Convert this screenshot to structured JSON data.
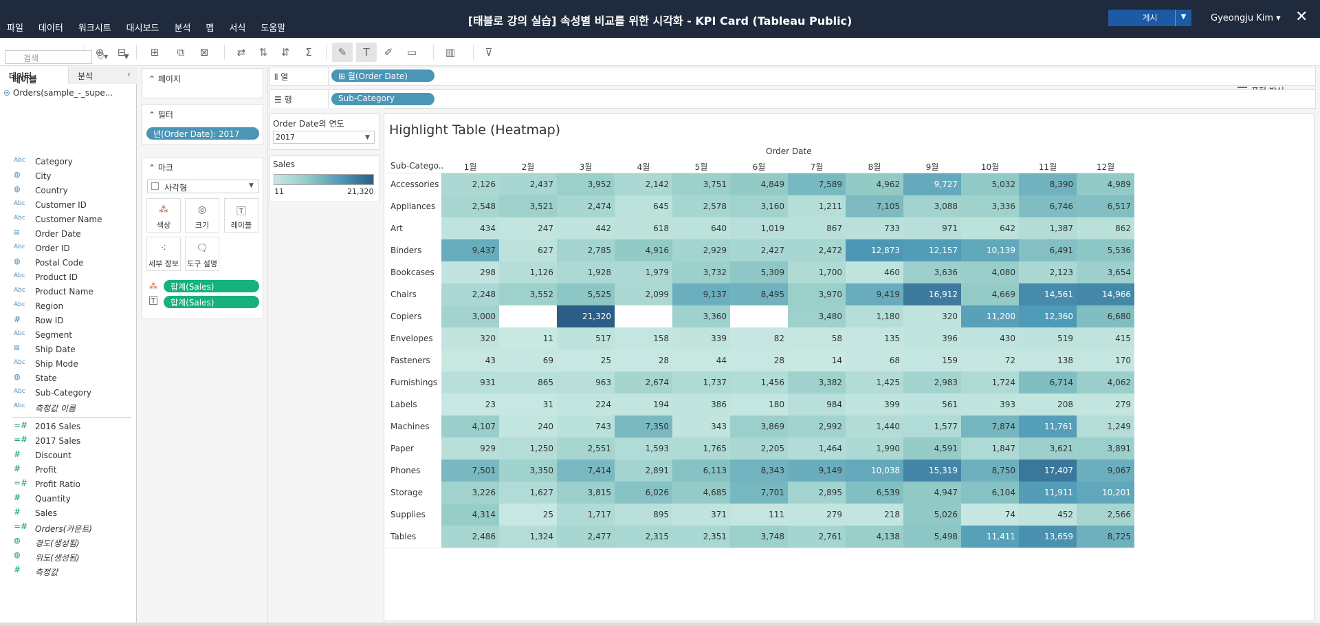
{
  "menu": [
    "파일",
    "데이터",
    "워크시트",
    "대시보드",
    "분석",
    "맵",
    "서식",
    "도움말"
  ],
  "title": "[태블로 강의 실습] 속성별 비교를 위한 시각화 - KPI Card (Tableau Public)",
  "publish_label": "게시",
  "user": "Gyeongju Kim ▾",
  "present_label": "표현 방식",
  "datapane": {
    "tab_data": "데이터",
    "tab_analysis": "분석",
    "datasource": "Orders(sample_-_supe...",
    "search_placeholder": "검색",
    "fields_heading": "테이블",
    "dimensions": [
      {
        "type": "Abc",
        "name": "Category"
      },
      {
        "type": "geo",
        "name": "City"
      },
      {
        "type": "geo",
        "name": "Country"
      },
      {
        "type": "Abc",
        "name": "Customer ID"
      },
      {
        "type": "Abc",
        "name": "Customer Name"
      },
      {
        "type": "date",
        "name": "Order Date"
      },
      {
        "type": "Abc",
        "name": "Order ID"
      },
      {
        "type": "geo",
        "name": "Postal Code"
      },
      {
        "type": "Abc",
        "name": "Product ID"
      },
      {
        "type": "Abc",
        "name": "Product Name"
      },
      {
        "type": "Abc",
        "name": "Region"
      },
      {
        "type": "#",
        "name": "Row ID"
      },
      {
        "type": "Abc",
        "name": "Segment"
      },
      {
        "type": "date",
        "name": "Ship Date"
      },
      {
        "type": "Abc",
        "name": "Ship Mode"
      },
      {
        "type": "geo",
        "name": "State"
      },
      {
        "type": "Abc",
        "name": "Sub-Category"
      },
      {
        "type": "Abc",
        "name": "측정값 이름",
        "italic": true
      }
    ],
    "measures": [
      {
        "type": "=#",
        "name": "2016 Sales"
      },
      {
        "type": "=#",
        "name": "2017 Sales"
      },
      {
        "type": "#",
        "name": "Discount"
      },
      {
        "type": "#",
        "name": "Profit"
      },
      {
        "type": "=#",
        "name": "Profit Ratio"
      },
      {
        "type": "#",
        "name": "Quantity"
      },
      {
        "type": "#",
        "name": "Sales"
      },
      {
        "type": "=#",
        "name": "Orders(카운트)",
        "italic": true
      },
      {
        "type": "geo",
        "name": "경도(생성됨)",
        "italic": true
      },
      {
        "type": "geo",
        "name": "위도(생성됨)",
        "italic": true
      },
      {
        "type": "#",
        "name": "측정값",
        "italic": true
      }
    ]
  },
  "cards": {
    "pages_label": "페이지",
    "filters_label": "필터",
    "filter_pill": "년(Order Date): 2017",
    "marks_label": "마크",
    "mark_type": "사각형",
    "mark_buttons": [
      "색상",
      "크기",
      "레이블",
      "세부 정보",
      "도구 설명"
    ],
    "mark_pill_color": "합계(Sales)",
    "mark_pill_label": "합계(Sales)"
  },
  "shelves": {
    "columns_label": "열",
    "columns_pill": "월(Order Date)",
    "rows_label": "행",
    "rows_pill": "Sub-Category"
  },
  "year_filter": {
    "title": "Order Date의 연도",
    "value": "2017"
  },
  "legend": {
    "title": "Sales",
    "min": "11",
    "max": "21,320"
  },
  "chart_data": {
    "type": "heatmap",
    "title": "Highlight Table (Heatmap)",
    "x_title": "Order Date",
    "y_title": "Sub-Catego..",
    "months": [
      "1월",
      "2월",
      "3월",
      "4월",
      "5월",
      "6월",
      "7월",
      "8월",
      "9월",
      "10월",
      "11월",
      "12월"
    ],
    "rows": [
      {
        "name": "Accessories",
        "values": [
          2126,
          2437,
          3952,
          2142,
          3751,
          4849,
          7589,
          4962,
          9727,
          5032,
          8390,
          4989
        ]
      },
      {
        "name": "Appliances",
        "values": [
          2548,
          3521,
          2474,
          645,
          2578,
          3160,
          1211,
          7105,
          3088,
          3336,
          6746,
          6517
        ]
      },
      {
        "name": "Art",
        "values": [
          434,
          247,
          442,
          618,
          640,
          1019,
          867,
          733,
          971,
          642,
          1387,
          862
        ]
      },
      {
        "name": "Binders",
        "values": [
          9437,
          627,
          2785,
          4916,
          2929,
          2427,
          2472,
          12873,
          12157,
          10139,
          6491,
          5536
        ]
      },
      {
        "name": "Bookcases",
        "values": [
          298,
          1126,
          1928,
          1979,
          3732,
          5309,
          1700,
          460,
          3636,
          4080,
          2123,
          3654
        ]
      },
      {
        "name": "Chairs",
        "values": [
          2248,
          3552,
          5525,
          2099,
          9137,
          8495,
          3970,
          9419,
          16912,
          4669,
          14561,
          14966
        ]
      },
      {
        "name": "Copiers",
        "values": [
          3000,
          null,
          21320,
          null,
          3360,
          null,
          3480,
          1180,
          320,
          11200,
          12360,
          6680
        ]
      },
      {
        "name": "Envelopes",
        "values": [
          320,
          11,
          517,
          158,
          339,
          82,
          58,
          135,
          396,
          430,
          519,
          415
        ]
      },
      {
        "name": "Fasteners",
        "values": [
          43,
          69,
          25,
          28,
          44,
          28,
          14,
          68,
          159,
          72,
          138,
          170
        ]
      },
      {
        "name": "Furnishings",
        "values": [
          931,
          865,
          963,
          2674,
          1737,
          1456,
          3382,
          1425,
          2983,
          1724,
          6714,
          4062
        ]
      },
      {
        "name": "Labels",
        "values": [
          23,
          31,
          224,
          194,
          386,
          180,
          984,
          399,
          561,
          393,
          208,
          279
        ]
      },
      {
        "name": "Machines",
        "values": [
          4107,
          240,
          743,
          7350,
          343,
          3869,
          2992,
          1440,
          1577,
          7874,
          11761,
          1249
        ]
      },
      {
        "name": "Paper",
        "values": [
          929,
          1250,
          2551,
          1593,
          1765,
          2205,
          1464,
          1990,
          4591,
          1847,
          3621,
          3891
        ]
      },
      {
        "name": "Phones",
        "values": [
          7501,
          3350,
          7414,
          2891,
          6113,
          8343,
          9149,
          10038,
          15319,
          8750,
          17407,
          9067
        ]
      },
      {
        "name": "Storage",
        "values": [
          3226,
          1627,
          3815,
          6026,
          4685,
          7701,
          2895,
          6539,
          4947,
          6104,
          11911,
          10201
        ]
      },
      {
        "name": "Supplies",
        "values": [
          4314,
          25,
          1717,
          895,
          371,
          111,
          279,
          218,
          5026,
          74,
          452,
          2566
        ]
      },
      {
        "name": "Tables",
        "values": [
          2486,
          1324,
          2477,
          2315,
          2351,
          3748,
          2761,
          4138,
          5498,
          11411,
          13659,
          8725
        ]
      }
    ],
    "color_min": 11,
    "color_max": 21320
  }
}
